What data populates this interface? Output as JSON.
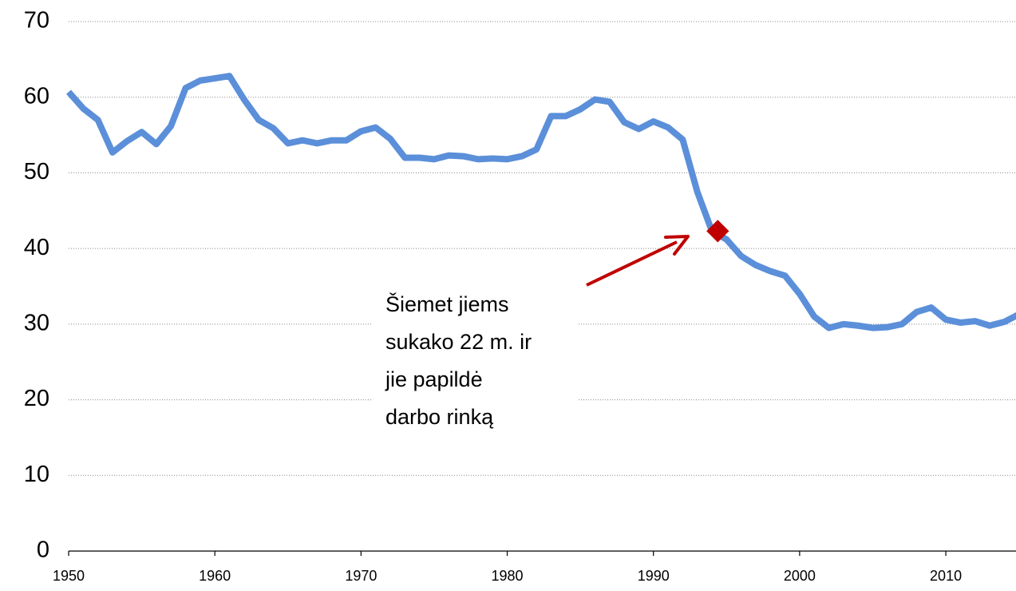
{
  "chart_data": {
    "type": "line",
    "x": [
      1950,
      1951,
      1952,
      1953,
      1954,
      1955,
      1956,
      1957,
      1958,
      1959,
      1960,
      1961,
      1962,
      1963,
      1964,
      1965,
      1966,
      1967,
      1968,
      1969,
      1970,
      1971,
      1972,
      1973,
      1974,
      1975,
      1976,
      1977,
      1978,
      1979,
      1980,
      1981,
      1982,
      1983,
      1984,
      1985,
      1986,
      1987,
      1988,
      1989,
      1990,
      1991,
      1992,
      1993,
      1994,
      1995,
      1996,
      1997,
      1998,
      1999,
      2000,
      2001,
      2002,
      2003,
      2004,
      2005,
      2006,
      2007,
      2008,
      2009,
      2010,
      2011,
      2012,
      2013,
      2014,
      2015
    ],
    "series": [
      {
        "color": "#5b8fd9",
        "values": [
          60.7,
          58.5,
          57.0,
          52.7,
          54.2,
          55.4,
          53.8,
          56.2,
          61.2,
          62.2,
          62.5,
          62.8,
          59.7,
          57.0,
          55.9,
          53.9,
          54.3,
          53.9,
          54.3,
          54.3,
          55.5,
          56.0,
          54.5,
          52.0,
          52.0,
          51.8,
          52.3,
          52.2,
          51.8,
          51.9,
          51.8,
          52.2,
          53.1,
          57.5,
          57.5,
          58.4,
          59.7,
          59.4,
          56.7,
          55.8,
          56.8,
          56.0,
          54.4,
          47.5,
          42.3,
          41.2,
          39.0,
          37.8,
          37.0,
          36.4,
          34.0,
          31.0,
          29.5,
          30.0,
          29.8,
          29.5,
          29.6,
          30.0,
          31.6,
          32.2,
          30.6,
          30.2,
          30.4,
          29.8,
          30.3,
          31.3
        ]
      }
    ],
    "xlim": [
      1950,
      2014.8
    ],
    "xticks": [
      1950,
      1960,
      1970,
      1980,
      1990,
      2000,
      2010
    ],
    "ylim": [
      0,
      70
    ],
    "yticks": [
      0,
      10,
      20,
      30,
      40,
      50,
      60,
      70
    ],
    "grid": true,
    "highlight": {
      "x": 1994.4,
      "y": 42.3,
      "color": "#c00000"
    },
    "annotation": [
      "Šiemet jiems",
      "sukako 22 m. ir",
      "jie papildė",
      "darbo rinką"
    ]
  }
}
